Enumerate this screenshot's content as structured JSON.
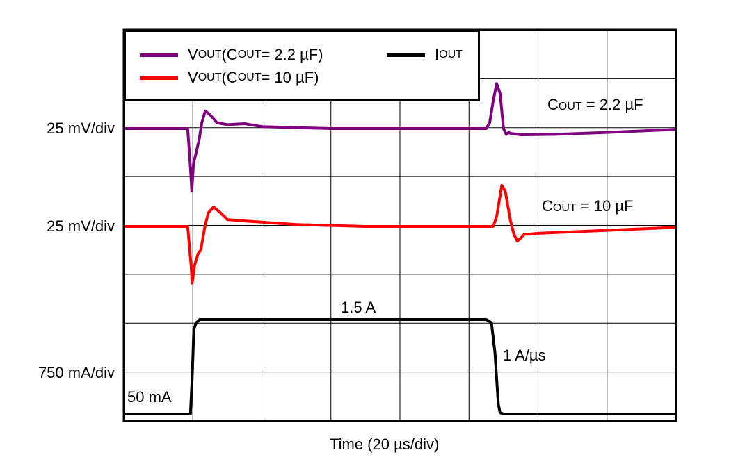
{
  "chart_data": {
    "type": "line",
    "title": "",
    "xlabel": "Time (20 µs/div)",
    "x_units": "µs",
    "xlim": [
      0,
      160
    ],
    "grid": true,
    "grid_divisions": {
      "x": 8,
      "y": 8
    },
    "y_channel_labels": [
      "25 mV/div",
      "25 mV/div",
      "750 mA/div"
    ],
    "legend_placement": "top-left",
    "legend": [
      {
        "label_main": "V",
        "label_sub": "OUT",
        "label_rest": " (C",
        "label_sub2": "OUT",
        "label_tail": " = 2.2 µF)",
        "color": "#800080"
      },
      {
        "label_main": "V",
        "label_sub": "OUT",
        "label_rest": " (C",
        "label_sub2": "OUT",
        "label_tail": " = 10 µF)",
        "color": "#ff0000"
      },
      {
        "label_main": "I",
        "label_sub": "OUT",
        "color": "#000000"
      }
    ],
    "annotations": {
      "cout22": {
        "main": "C",
        "sub": "OUT",
        "rest": " = 2.2 µF"
      },
      "cout10": {
        "main": "C",
        "sub": "OUT",
        "rest": " = 10 µF"
      },
      "high_current": "1.5 A",
      "slew": "1 A/µs",
      "low_current": "50 mA"
    },
    "series": [
      {
        "name": "VOUT (COUT = 2.2 µF)",
        "units": "mV (AC deviation)",
        "color": "#800080",
        "points": [
          [
            0,
            0
          ],
          [
            18.5,
            0
          ],
          [
            19.3,
            -20
          ],
          [
            19.7,
            -32
          ],
          [
            20.2,
            -18
          ],
          [
            21,
            -12
          ],
          [
            21.8,
            -6
          ],
          [
            22.6,
            3
          ],
          [
            23.6,
            9
          ],
          [
            25,
            7
          ],
          [
            27,
            3
          ],
          [
            30,
            2
          ],
          [
            35,
            2.5
          ],
          [
            40,
            1
          ],
          [
            50,
            0.5
          ],
          [
            60,
            0
          ],
          [
            105,
            0
          ],
          [
            106,
            3
          ],
          [
            107,
            14
          ],
          [
            108,
            23
          ],
          [
            109,
            18
          ],
          [
            110,
            0
          ],
          [
            110.8,
            -3
          ],
          [
            111.5,
            -2
          ],
          [
            112,
            -2.5
          ],
          [
            115,
            -3.2
          ],
          [
            125,
            -3
          ],
          [
            140,
            -2
          ],
          [
            160,
            -0.5
          ]
        ]
      },
      {
        "name": "VOUT (COUT = 10 µF)",
        "units": "mV (AC deviation)",
        "color": "#ff0000",
        "points": [
          [
            0,
            0
          ],
          [
            18.5,
            0
          ],
          [
            19.5,
            -20
          ],
          [
            19.8,
            -29
          ],
          [
            20.5,
            -20
          ],
          [
            21.5,
            -14
          ],
          [
            22.3,
            -12
          ],
          [
            23.5,
            0
          ],
          [
            24.5,
            7
          ],
          [
            26,
            10
          ],
          [
            28,
            7
          ],
          [
            30,
            3.5
          ],
          [
            35,
            2.8
          ],
          [
            50,
            1
          ],
          [
            70,
            0
          ],
          [
            107,
            0
          ],
          [
            108,
            5
          ],
          [
            109.5,
            21
          ],
          [
            110.5,
            18
          ],
          [
            112,
            3
          ],
          [
            113,
            -4
          ],
          [
            114,
            -7.5
          ],
          [
            115,
            -6
          ],
          [
            116,
            -4
          ],
          [
            117,
            -4
          ],
          [
            120,
            -3.5
          ],
          [
            140,
            -2
          ],
          [
            160,
            -0.5
          ]
        ]
      },
      {
        "name": "IOUT",
        "units": "A",
        "color": "#000000",
        "points": [
          [
            0,
            0.05
          ],
          [
            19.3,
            0.05
          ],
          [
            19.8,
            0.6
          ],
          [
            20.3,
            1.35
          ],
          [
            21,
            1.45
          ],
          [
            22,
            1.5
          ],
          [
            105,
            1.5
          ],
          [
            106.5,
            1.45
          ],
          [
            107.5,
            1.0
          ],
          [
            108.5,
            0.2
          ],
          [
            109,
            0.07
          ],
          [
            110,
            0.05
          ],
          [
            160,
            0.05
          ]
        ]
      }
    ]
  }
}
